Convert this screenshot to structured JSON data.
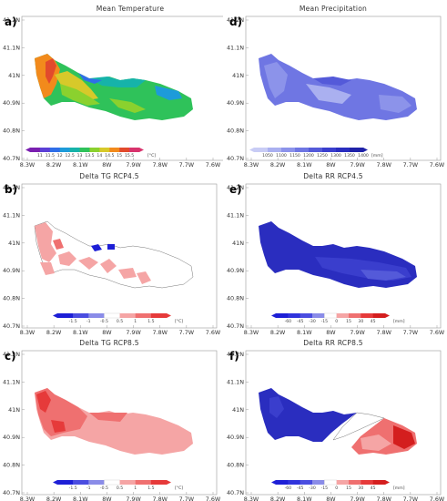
{
  "panels": [
    {
      "id": "a",
      "label": "a)",
      "title": "Mean Temperature",
      "x_ticks": [
        "8.3W",
        "8.2W",
        "8.1W",
        "8W",
        "7.9W",
        "7.8W",
        "7.7W",
        "7.6W"
      ],
      "y_ticks": [
        "41.2N",
        "41.1N",
        "41N",
        "40.9N",
        "40.8N",
        "40.7N"
      ],
      "colorbar": {
        "colors": [
          "#7a1fb0",
          "#5b3fd6",
          "#2f6ee8",
          "#1d9bd9",
          "#16b3a9",
          "#2fc25a",
          "#8bd12e",
          "#d7c92a",
          "#f28a1c",
          "#e24a2c",
          "#d8336d"
        ],
        "labels": [
          "11",
          "11.5",
          "12",
          "12.5",
          "13",
          "13.5",
          "14",
          "14.5",
          "15",
          "15.5"
        ],
        "unit": "[°C]"
      }
    },
    {
      "id": "d",
      "label": "d)",
      "title": "Mean Precipitation",
      "x_ticks": [
        "8.3W",
        "8.2W",
        "8.1W",
        "8W",
        "7.9W",
        "7.8W",
        "7.7W",
        "7.6W"
      ],
      "y_ticks": [
        "41.2N",
        "41.1N",
        "41N",
        "40.9N",
        "40.8N",
        "40.7N"
      ],
      "colorbar": {
        "colors": [
          "#c8ccf5",
          "#aab0f0",
          "#8c93ea",
          "#6f76e3",
          "#545ad9",
          "#3a3ecd",
          "#2a2dbf",
          "#1f22a8"
        ],
        "labels": [
          "1050",
          "1100",
          "1150",
          "1200",
          "1250",
          "1300",
          "1350",
          "1400"
        ],
        "unit": "[mm]"
      }
    },
    {
      "id": "b",
      "label": "b)",
      "title": "Delta TG RCP4.5",
      "x_ticks": [
        "8.3W",
        "8.2W",
        "8.1W",
        "8W",
        "7.9W",
        "7.8W",
        "7.7W",
        "7.6W"
      ],
      "y_ticks": [
        "41.2N",
        "41.1N",
        "41N",
        "40.9N",
        "40.8N",
        "40.7N"
      ],
      "colorbar": {
        "colors": [
          "#1d1fd6",
          "#4a4de0",
          "#8a8ce8",
          "#ffffff",
          "#f5a5a5",
          "#ef7070",
          "#e63a3a"
        ],
        "labels": [
          "-1.5",
          "-1",
          "-0.5",
          "0.5",
          "1",
          "1.5"
        ],
        "unit": "[°C]"
      }
    },
    {
      "id": "e",
      "label": "e)",
      "title": "Delta RR RCP4.5",
      "x_ticks": [
        "8.3W",
        "8.2W",
        "8.1W",
        "8W",
        "7.9W",
        "7.8W",
        "7.7W",
        "7.6W"
      ],
      "y_ticks": [
        "41.2N",
        "41.1N",
        "41N",
        "40.9N",
        "40.8N",
        "40.7N"
      ],
      "colorbar": {
        "colors": [
          "#1d1fd6",
          "#3033dc",
          "#4a4de0",
          "#8a8ce8",
          "#ffffff",
          "#f5a5a5",
          "#ef7070",
          "#e63a3a",
          "#d41e1e"
        ],
        "labels": [
          "-60",
          "-45",
          "-30",
          "-15",
          "0",
          "15",
          "30",
          "45"
        ],
        "unit": "[mm]"
      }
    },
    {
      "id": "c",
      "label": "c)",
      "title": "Delta TG RCP8.5",
      "x_ticks": [
        "8.3W",
        "8.2W",
        "8.1W",
        "8W",
        "7.9W",
        "7.8W",
        "7.7W",
        "7.6W"
      ],
      "y_ticks": [
        "41.2N",
        "41.1N",
        "41N",
        "40.9N",
        "40.8N",
        "40.7N"
      ],
      "colorbar": {
        "colors": [
          "#1d1fd6",
          "#4a4de0",
          "#8a8ce8",
          "#ffffff",
          "#f5a5a5",
          "#ef7070",
          "#e63a3a"
        ],
        "labels": [
          "-1.5",
          "-1",
          "-0.5",
          "0.5",
          "1",
          "1.5"
        ],
        "unit": "[°C]"
      }
    },
    {
      "id": "f",
      "label": "f)",
      "title": "Delta RR RCP8.5",
      "x_ticks": [
        "8.3W",
        "8.2W",
        "8.1W",
        "8W",
        "7.9W",
        "7.8W",
        "7.7W",
        "7.6W"
      ],
      "y_ticks": [
        "41.2N",
        "41.1N",
        "41N",
        "40.9N",
        "40.8N",
        "40.7N"
      ],
      "colorbar": {
        "colors": [
          "#1d1fd6",
          "#3033dc",
          "#4a4de0",
          "#8a8ce8",
          "#ffffff",
          "#f5a5a5",
          "#ef7070",
          "#e63a3a",
          "#d41e1e"
        ],
        "labels": [
          "-60",
          "-45",
          "-30",
          "-15",
          "0",
          "15",
          "30",
          "45"
        ],
        "unit": "[mm]"
      }
    }
  ]
}
